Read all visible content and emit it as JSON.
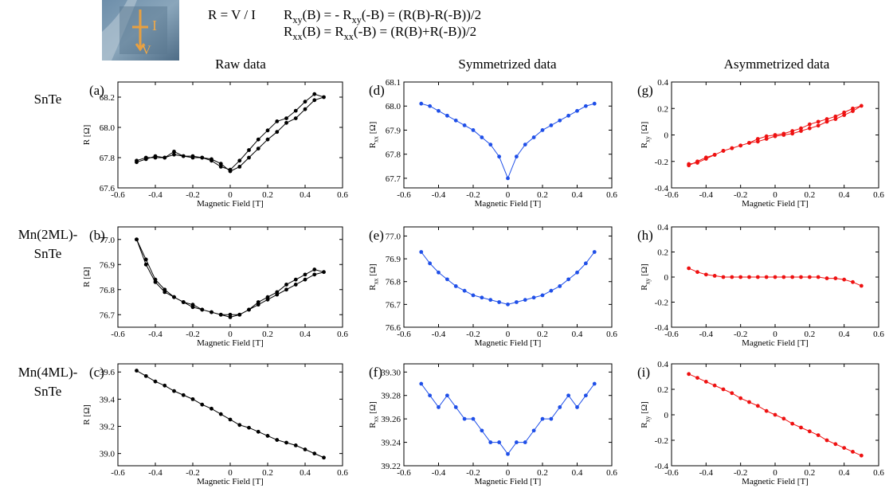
{
  "header": {
    "photo_labels": [
      "I",
      "V"
    ],
    "formula_1": "R = V / I",
    "formula_2": [
      "R",
      "xy",
      "(B) = - R",
      "xy",
      "(-B) = (R(B)-R(-B))/2"
    ],
    "formula_3": [
      "R",
      "xx",
      "(B) = R",
      "xx",
      "(-B) = (R(B)+R(-B))/2"
    ]
  },
  "column_titles": [
    "Raw data",
    "Symmetrized data",
    "Asymmetrized data"
  ],
  "row_labels": [
    [
      "SnTe"
    ],
    [
      "Mn(2ML)-",
      "SnTe"
    ],
    [
      "Mn(4ML)-",
      "SnTe"
    ]
  ],
  "chart_data": [
    {
      "type": "line",
      "panel_label": "(a)",
      "xlabel": "Magnetic Field [T]",
      "ylabel": [
        "R  [Ω]"
      ],
      "x": [
        -0.5,
        -0.45,
        -0.4,
        -0.35,
        -0.3,
        -0.25,
        -0.2,
        -0.15,
        -0.1,
        -0.05,
        0,
        0.05,
        0.1,
        0.15,
        0.2,
        0.25,
        0.3,
        0.35,
        0.4,
        0.45,
        0.5,
        0.45,
        0.4,
        0.35,
        0.3,
        0.25,
        0.2,
        0.15,
        0.1,
        0.05,
        0,
        -0.05,
        -0.1,
        -0.15,
        -0.2,
        -0.25,
        -0.3,
        -0.35,
        -0.4,
        -0.45,
        -0.5
      ],
      "series": [
        {
          "color": "#000000",
          "values": [
            67.78,
            67.8,
            67.8,
            67.8,
            67.82,
            67.81,
            67.81,
            67.8,
            67.79,
            67.76,
            67.71,
            67.74,
            67.8,
            67.86,
            67.92,
            67.97,
            68.03,
            68.06,
            68.12,
            68.18,
            68.2,
            68.22,
            68.17,
            68.11,
            68.06,
            68.04,
            67.98,
            67.92,
            67.85,
            67.78,
            67.72,
            67.74,
            67.78,
            67.8,
            67.8,
            67.81,
            67.84,
            67.8,
            67.81,
            67.79,
            67.77
          ]
        }
      ],
      "xlim": [
        -0.6,
        0.6
      ],
      "xticks": [
        -0.6,
        -0.4,
        -0.2,
        0,
        0.2,
        0.4,
        0.6
      ],
      "ylim": [
        67.6,
        68.3
      ],
      "yticks": [
        67.6,
        67.8,
        {
          "value": 68,
          "label": "68.0"
        },
        68.2
      ]
    },
    {
      "type": "line",
      "panel_label": "(d)",
      "xlabel": "Magnetic Field [T]",
      "ylabel": [
        "R",
        "xx",
        " [Ω]"
      ],
      "x": [
        -0.5,
        -0.45,
        -0.4,
        -0.35,
        -0.3,
        -0.25,
        -0.2,
        -0.15,
        -0.1,
        -0.05,
        0,
        0.05,
        0.1,
        0.15,
        0.2,
        0.25,
        0.3,
        0.35,
        0.4,
        0.45,
        0.5
      ],
      "series": [
        {
          "color": "#1f4fe8",
          "values": [
            68.01,
            68,
            67.98,
            67.96,
            67.94,
            67.92,
            67.9,
            67.87,
            67.84,
            67.79,
            67.7,
            67.79,
            67.84,
            67.87,
            67.9,
            67.92,
            67.94,
            67.96,
            67.98,
            68,
            68.01
          ]
        }
      ],
      "xlim": [
        -0.6,
        0.6
      ],
      "xticks": [
        -0.6,
        -0.4,
        -0.2,
        0,
        0.2,
        0.4,
        0.6
      ],
      "ylim": [
        67.66,
        68.1
      ],
      "yticks": [
        67.7,
        67.8,
        67.9,
        {
          "value": 68,
          "label": "68.0"
        },
        68.1
      ]
    },
    {
      "type": "line",
      "panel_label": "(g)",
      "xlabel": "Magnetic Field [T]",
      "ylabel": [
        "R",
        "xy",
        " [Ω]"
      ],
      "x": [
        -0.5,
        -0.45,
        -0.4,
        -0.35,
        -0.3,
        -0.25,
        -0.2,
        -0.15,
        -0.1,
        -0.05,
        0,
        0.05,
        0.1,
        0.15,
        0.2,
        0.25,
        0.3,
        0.35,
        0.4,
        0.45,
        0.5,
        0.45,
        0.4,
        0.35,
        0.3,
        0.25,
        0.2,
        0.15,
        0.1,
        0.05,
        0,
        -0.05,
        -0.1,
        -0.15,
        -0.2,
        -0.25,
        -0.3,
        -0.35,
        -0.4,
        -0.45,
        -0.5
      ],
      "series": [
        {
          "color": "#ee1111",
          "values": [
            -0.23,
            -0.2,
            -0.17,
            -0.15,
            -0.12,
            -0.1,
            -0.08,
            -0.06,
            -0.03,
            -0.01,
            0,
            0.01,
            0.03,
            0.05,
            0.08,
            0.1,
            0.12,
            0.14,
            0.17,
            0.2,
            0.22,
            0.18,
            0.15,
            0.12,
            0.1,
            0.07,
            0.05,
            0.03,
            0.01,
            0,
            -0.01,
            -0.03,
            -0.05,
            -0.06,
            -0.08,
            -0.1,
            -0.12,
            -0.15,
            -0.18,
            -0.21,
            -0.22
          ]
        }
      ],
      "xlim": [
        -0.6,
        0.6
      ],
      "xticks": [
        -0.6,
        -0.4,
        -0.2,
        0,
        0.2,
        0.4,
        0.6
      ],
      "ylim": [
        -0.4,
        0.4
      ],
      "yticks": [
        -0.4,
        -0.2,
        0,
        0.2,
        0.4
      ]
    },
    {
      "type": "line",
      "panel_label": "(b)",
      "xlabel": "Magnetic Field [T]",
      "ylabel": [
        "R  [Ω]"
      ],
      "x": [
        -0.5,
        -0.45,
        -0.4,
        -0.35,
        -0.3,
        -0.25,
        -0.2,
        -0.15,
        -0.1,
        -0.05,
        0,
        0.05,
        0.1,
        0.15,
        0.2,
        0.25,
        0.3,
        0.35,
        0.4,
        0.45,
        0.5,
        0.45,
        0.4,
        0.35,
        0.3,
        0.25,
        0.2,
        0.15,
        0.1,
        0.05,
        0,
        -0.05,
        -0.1,
        -0.15,
        -0.2,
        -0.25,
        -0.3,
        -0.35,
        -0.4,
        -0.45,
        -0.5
      ],
      "series": [
        {
          "color": "#000000",
          "values": [
            77,
            76.9,
            76.83,
            76.79,
            76.77,
            76.75,
            76.74,
            76.72,
            76.71,
            76.7,
            76.7,
            76.7,
            76.72,
            76.74,
            76.76,
            76.78,
            76.8,
            76.82,
            76.84,
            76.86,
            76.87,
            76.88,
            76.86,
            76.84,
            76.82,
            76.79,
            76.77,
            76.75,
            76.72,
            76.7,
            76.69,
            76.7,
            76.71,
            76.72,
            76.73,
            76.75,
            76.77,
            76.8,
            76.84,
            76.92,
            77
          ]
        }
      ],
      "xlim": [
        -0.6,
        0.6
      ],
      "xticks": [
        -0.6,
        -0.4,
        -0.2,
        0,
        0.2,
        0.4,
        0.6
      ],
      "ylim": [
        76.65,
        77.05
      ],
      "yticks": [
        76.7,
        76.8,
        76.9,
        {
          "value": 77,
          "label": "77.0"
        }
      ]
    },
    {
      "type": "line",
      "panel_label": "(e)",
      "xlabel": "Magnetic Field [T]",
      "ylabel": [
        "R",
        "xx",
        " [Ω]"
      ],
      "x": [
        -0.5,
        -0.45,
        -0.4,
        -0.35,
        -0.3,
        -0.25,
        -0.2,
        -0.15,
        -0.1,
        -0.05,
        0,
        0.05,
        0.1,
        0.15,
        0.2,
        0.25,
        0.3,
        0.35,
        0.4,
        0.45,
        0.5
      ],
      "series": [
        {
          "color": "#1f4fe8",
          "values": [
            76.93,
            76.88,
            76.84,
            76.81,
            76.78,
            76.76,
            76.74,
            76.73,
            76.72,
            76.71,
            76.7,
            76.71,
            76.72,
            76.73,
            76.74,
            76.76,
            76.78,
            76.81,
            76.84,
            76.88,
            76.93
          ]
        }
      ],
      "xlim": [
        -0.6,
        0.6
      ],
      "xticks": [
        -0.6,
        -0.4,
        -0.2,
        0,
        0.2,
        0.4,
        0.6
      ],
      "ylim": [
        76.6,
        77.04
      ],
      "yticks": [
        76.6,
        76.7,
        76.8,
        76.9,
        {
          "value": 77,
          "label": "77.0"
        }
      ]
    },
    {
      "type": "line",
      "panel_label": "(h)",
      "xlabel": "Magnetic Field [T]",
      "ylabel": [
        "R",
        "xy",
        " [Ω]"
      ],
      "x": [
        -0.5,
        -0.45,
        -0.4,
        -0.35,
        -0.3,
        -0.25,
        -0.2,
        -0.15,
        -0.1,
        -0.05,
        0,
        0.05,
        0.1,
        0.15,
        0.2,
        0.25,
        0.3,
        0.35,
        0.4,
        0.45,
        0.5
      ],
      "series": [
        {
          "color": "#ee1111",
          "values": [
            0.07,
            0.04,
            0.02,
            0.01,
            0,
            0,
            0,
            0,
            0,
            0,
            0,
            0,
            0,
            0,
            0,
            0,
            -0.01,
            -0.01,
            -0.02,
            -0.04,
            -0.07
          ]
        }
      ],
      "xlim": [
        -0.6,
        0.6
      ],
      "xticks": [
        -0.6,
        -0.4,
        -0.2,
        0,
        0.2,
        0.4,
        0.6
      ],
      "ylim": [
        -0.4,
        0.4
      ],
      "yticks": [
        -0.4,
        -0.2,
        0,
        0.2,
        0.4
      ]
    },
    {
      "type": "line",
      "panel_label": "(c)",
      "xlabel": "Magnetic Field [T]",
      "ylabel": [
        "R  [Ω]"
      ],
      "x": [
        -0.5,
        -0.45,
        -0.4,
        -0.35,
        -0.3,
        -0.25,
        -0.2,
        -0.15,
        -0.1,
        -0.05,
        0,
        0.05,
        0.1,
        0.15,
        0.2,
        0.25,
        0.3,
        0.35,
        0.4,
        0.45,
        0.5
      ],
      "series": [
        {
          "color": "#000000",
          "values": [
            39.61,
            39.57,
            39.53,
            39.5,
            39.46,
            39.43,
            39.4,
            39.36,
            39.33,
            39.29,
            39.25,
            39.21,
            39.19,
            39.16,
            39.13,
            39.1,
            39.08,
            39.06,
            39.03,
            39,
            38.97
          ]
        }
      ],
      "xlim": [
        -0.6,
        0.6
      ],
      "xticks": [
        -0.6,
        -0.4,
        -0.2,
        0,
        0.2,
        0.4,
        0.6
      ],
      "ylim": [
        38.91,
        39.66
      ],
      "yticks": [
        {
          "value": 39,
          "label": "39.0"
        },
        39.2,
        39.4,
        39.6
      ]
    },
    {
      "type": "line",
      "panel_label": "(f)",
      "xlabel": "Magnetic Field [T]",
      "ylabel": [
        "R",
        "xx",
        " [Ω]"
      ],
      "x": [
        -0.5,
        -0.45,
        -0.4,
        -0.35,
        -0.3,
        -0.25,
        -0.2,
        -0.15,
        -0.1,
        -0.05,
        0,
        0.05,
        0.1,
        0.15,
        0.2,
        0.25,
        0.3,
        0.35,
        0.4,
        0.45,
        0.5
      ],
      "series": [
        {
          "color": "#1f4fe8",
          "values": [
            39.29,
            39.28,
            39.27,
            39.28,
            39.27,
            39.26,
            39.26,
            39.25,
            39.24,
            39.24,
            39.23,
            39.24,
            39.24,
            39.25,
            39.26,
            39.26,
            39.27,
            39.28,
            39.27,
            39.28,
            39.29
          ]
        }
      ],
      "xlim": [
        -0.6,
        0.6
      ],
      "xticks": [
        -0.6,
        -0.4,
        -0.2,
        0,
        0.2,
        0.4,
        0.6
      ],
      "ylim": [
        39.22,
        39.307
      ],
      "yticks": [
        39.22,
        39.24,
        39.26,
        39.28,
        {
          "value": 39.3,
          "label": "39.30"
        }
      ]
    },
    {
      "type": "line",
      "panel_label": "(i)",
      "xlabel": "Magnetic Field [T]",
      "ylabel": [
        "R",
        "xy",
        " [Ω]"
      ],
      "x": [
        -0.5,
        -0.45,
        -0.4,
        -0.35,
        -0.3,
        -0.25,
        -0.2,
        -0.15,
        -0.1,
        -0.05,
        0,
        0.05,
        0.1,
        0.15,
        0.2,
        0.25,
        0.3,
        0.35,
        0.4,
        0.45,
        0.5
      ],
      "series": [
        {
          "color": "#ee1111",
          "values": [
            0.32,
            0.29,
            0.26,
            0.23,
            0.2,
            0.17,
            0.13,
            0.1,
            0.07,
            0.03,
            0,
            -0.03,
            -0.07,
            -0.1,
            -0.13,
            -0.16,
            -0.2,
            -0.23,
            -0.26,
            -0.29,
            -0.32
          ]
        }
      ],
      "xlim": [
        -0.6,
        0.6
      ],
      "xticks": [
        -0.6,
        -0.4,
        -0.2,
        0,
        0.2,
        0.4,
        0.6
      ],
      "ylim": [
        -0.4,
        0.4
      ],
      "yticks": [
        -0.4,
        -0.2,
        0,
        0.2,
        0.4
      ]
    }
  ]
}
